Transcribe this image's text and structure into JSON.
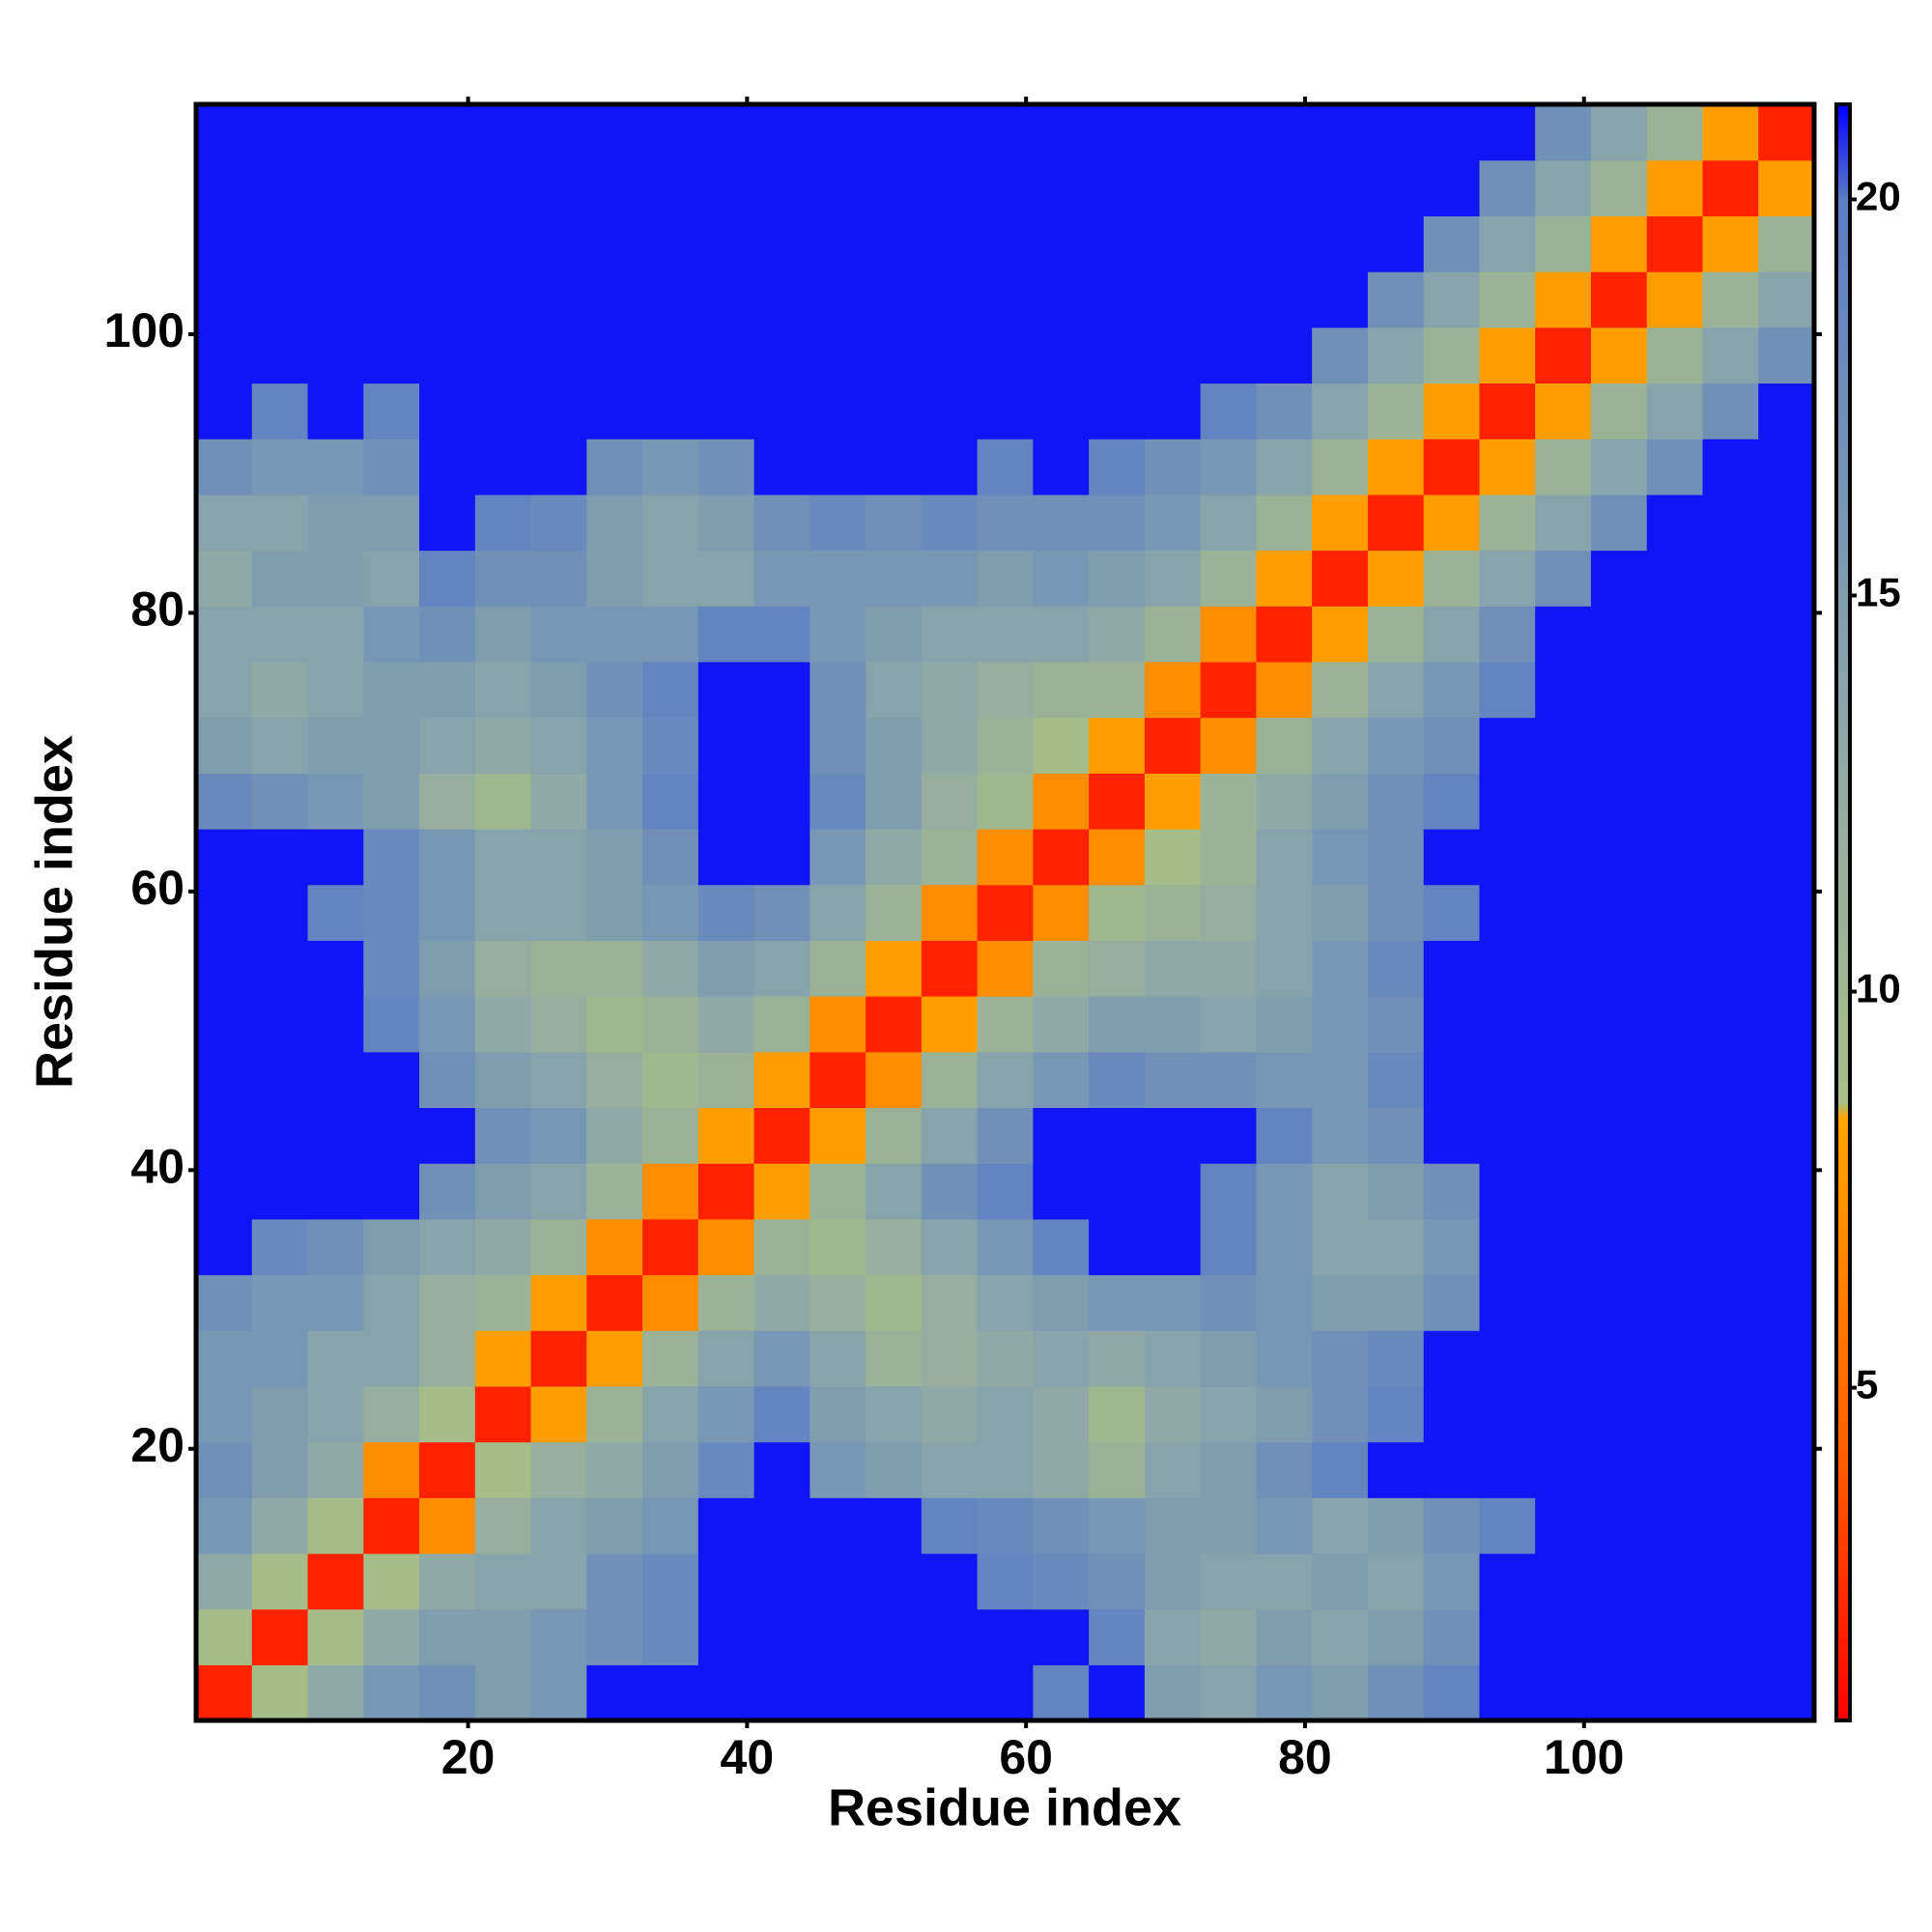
{
  "chart_data": {
    "type": "heatmap",
    "xlabel": "Residue index",
    "ylabel": "Residue index",
    "x": [
      2.5,
      6.5,
      10.5,
      14.5,
      18.5,
      22.5,
      26.5,
      30.5,
      34.5,
      38.5,
      42.5,
      46.5,
      50.5,
      54.5,
      58.5,
      62.5,
      66.5,
      70.5,
      74.5,
      78.5,
      82.5,
      86.5,
      90.5,
      94.5,
      98.5,
      102.5,
      106.5,
      110.5,
      114.5
    ],
    "y": [
      2.5,
      6.5,
      10.5,
      14.5,
      18.5,
      22.5,
      26.5,
      30.5,
      34.5,
      38.5,
      42.5,
      46.5,
      50.5,
      54.5,
      58.5,
      62.5,
      66.5,
      70.5,
      74.5,
      78.5,
      82.5,
      86.5,
      90.5,
      94.5,
      98.5,
      102.5,
      106.5,
      110.5,
      114.5
    ],
    "z": [
      [
        2,
        9,
        13,
        16,
        17,
        15,
        16,
        21,
        21,
        21,
        21,
        21,
        21,
        21,
        21,
        19,
        21,
        15,
        14,
        16,
        15,
        17,
        19,
        21,
        21,
        21,
        21,
        21,
        21
      ],
      [
        9,
        2,
        9,
        13,
        15,
        15,
        16,
        17,
        18,
        21,
        21,
        21,
        21,
        21,
        21,
        21,
        19,
        14,
        13,
        15,
        14,
        15,
        17,
        21,
        21,
        21,
        21,
        21,
        21
      ],
      [
        13,
        9,
        2,
        9,
        13,
        14,
        14,
        17,
        18,
        21,
        21,
        21,
        21,
        21,
        19,
        18,
        17,
        15,
        14,
        14,
        15,
        14,
        16,
        21,
        21,
        21,
        21,
        21,
        21
      ],
      [
        16,
        13,
        9,
        2,
        7,
        12,
        14,
        15,
        16,
        21,
        21,
        21,
        21,
        19,
        18,
        17,
        16,
        15,
        15,
        16,
        14,
        15,
        17,
        19,
        21,
        21,
        21,
        21,
        21
      ],
      [
        17,
        15,
        13,
        7,
        2,
        9,
        12,
        13,
        15,
        18,
        21,
        16,
        15,
        14,
        14,
        13,
        11,
        14,
        15,
        17,
        19,
        21,
        21,
        21,
        21,
        21,
        21,
        21,
        21
      ],
      [
        16,
        15,
        14,
        12,
        9,
        2,
        8,
        11,
        14,
        16,
        19,
        15,
        14,
        13,
        14,
        13,
        10,
        13,
        14,
        15,
        17,
        19,
        21,
        21,
        21,
        21,
        21,
        21,
        21
      ],
      [
        16,
        16,
        14,
        14,
        12,
        8,
        2,
        8,
        11,
        14,
        16,
        14,
        11,
        12,
        13,
        14,
        13,
        14,
        15,
        16,
        17,
        18,
        21,
        21,
        21,
        21,
        21,
        21,
        21
      ],
      [
        17,
        16,
        16,
        14,
        12,
        11,
        8,
        2,
        7,
        11,
        13,
        12,
        10,
        12,
        14,
        15,
        16,
        16,
        17,
        16,
        15,
        15,
        17,
        21,
        21,
        21,
        21,
        21,
        21
      ],
      [
        21,
        18,
        17,
        15,
        14,
        13,
        11,
        7,
        2,
        7,
        11,
        10,
        12,
        14,
        16,
        19,
        21,
        21,
        19,
        16,
        14,
        14,
        16,
        21,
        21,
        21,
        21,
        21,
        21
      ],
      [
        21,
        21,
        21,
        21,
        17,
        15,
        14,
        11,
        7,
        2,
        8,
        11,
        14,
        17,
        19,
        21,
        21,
        21,
        19,
        16,
        14,
        15,
        17,
        21,
        21,
        21,
        21,
        21,
        21
      ],
      [
        21,
        21,
        21,
        21,
        21,
        17,
        16,
        13,
        11,
        8,
        2,
        8,
        11,
        14,
        17,
        21,
        21,
        21,
        21,
        19,
        16,
        17,
        21,
        21,
        21,
        21,
        21,
        21,
        21
      ],
      [
        21,
        21,
        21,
        21,
        17,
        15,
        14,
        12,
        10,
        11,
        8,
        2,
        7,
        11,
        14,
        16,
        18,
        17,
        17,
        16,
        16,
        18,
        21,
        21,
        21,
        21,
        21,
        21,
        21
      ],
      [
        21,
        21,
        21,
        19,
        16,
        13,
        12,
        10,
        11,
        13,
        11,
        7,
        2,
        8,
        11,
        13,
        15,
        15,
        14,
        15,
        16,
        17,
        21,
        21,
        21,
        21,
        21,
        21,
        21
      ],
      [
        21,
        21,
        21,
        18,
        15,
        12,
        11,
        11,
        13,
        15,
        14,
        11,
        8,
        2,
        7,
        11,
        12,
        13,
        13,
        14,
        16,
        18,
        21,
        21,
        21,
        21,
        21,
        21,
        21
      ],
      [
        21,
        21,
        19,
        18,
        16,
        14,
        14,
        15,
        16,
        18,
        17,
        14,
        11,
        7,
        2,
        7,
        10,
        11,
        12,
        14,
        15,
        17,
        19,
        21,
        21,
        21,
        21,
        21,
        21
      ],
      [
        21,
        21,
        21,
        18,
        16,
        14,
        14,
        15,
        17,
        21,
        21,
        16,
        13,
        11,
        7,
        2,
        7,
        9,
        11,
        14,
        16,
        17,
        21,
        21,
        21,
        21,
        21,
        21,
        21
      ],
      [
        18,
        17,
        16,
        15,
        12,
        10,
        13,
        16,
        19,
        21,
        21,
        18,
        15,
        12,
        10,
        7,
        2,
        8,
        11,
        13,
        15,
        17,
        19,
        21,
        21,
        21,
        21,
        21,
        21
      ],
      [
        15,
        14,
        15,
        15,
        14,
        13,
        14,
        16,
        18,
        21,
        21,
        17,
        15,
        13,
        11,
        9,
        8,
        2,
        7,
        11,
        14,
        16,
        17,
        21,
        21,
        21,
        21,
        21,
        21
      ],
      [
        14,
        13,
        14,
        15,
        15,
        14,
        15,
        17,
        19,
        21,
        21,
        17,
        14,
        13,
        12,
        11,
        11,
        7,
        2,
        7,
        11,
        14,
        16,
        19,
        21,
        21,
        21,
        21,
        21
      ],
      [
        14,
        14,
        14,
        16,
        17,
        15,
        16,
        16,
        16,
        19,
        19,
        16,
        15,
        14,
        14,
        14,
        13,
        11,
        7,
        2,
        8,
        11,
        14,
        17,
        21,
        21,
        21,
        21,
        21
      ],
      [
        13,
        15,
        15,
        14,
        19,
        17,
        17,
        15,
        14,
        14,
        16,
        16,
        16,
        16,
        15,
        16,
        15,
        14,
        11,
        8,
        2,
        8,
        11,
        14,
        17,
        21,
        21,
        21,
        21
      ],
      [
        14,
        14,
        15,
        15,
        21,
        19,
        18,
        15,
        14,
        15,
        17,
        18,
        17,
        18,
        17,
        17,
        17,
        16,
        14,
        11,
        8,
        2,
        8,
        11,
        14,
        17,
        21,
        21,
        21
      ],
      [
        17,
        16,
        16,
        17,
        21,
        21,
        21,
        17,
        16,
        17,
        21,
        21,
        21,
        21,
        19,
        21,
        19,
        17,
        16,
        14,
        11,
        8,
        2,
        8,
        11,
        14,
        17,
        21,
        21
      ],
      [
        21,
        19,
        21,
        19,
        21,
        21,
        21,
        21,
        21,
        21,
        21,
        21,
        21,
        21,
        21,
        21,
        21,
        21,
        19,
        17,
        14,
        11,
        8,
        2,
        8,
        11,
        14,
        17,
        21
      ],
      [
        21,
        21,
        21,
        21,
        21,
        21,
        21,
        21,
        21,
        21,
        21,
        21,
        21,
        21,
        21,
        21,
        21,
        21,
        21,
        21,
        17,
        14,
        11,
        8,
        2,
        8,
        11,
        14,
        17
      ],
      [
        21,
        21,
        21,
        21,
        21,
        21,
        21,
        21,
        21,
        21,
        21,
        21,
        21,
        21,
        21,
        21,
        21,
        21,
        21,
        21,
        21,
        17,
        14,
        11,
        8,
        2,
        8,
        11,
        14
      ],
      [
        21,
        21,
        21,
        21,
        21,
        21,
        21,
        21,
        21,
        21,
        21,
        21,
        21,
        21,
        21,
        21,
        21,
        21,
        21,
        21,
        21,
        21,
        17,
        14,
        11,
        8,
        2,
        8,
        11
      ],
      [
        21,
        21,
        21,
        21,
        21,
        21,
        21,
        21,
        21,
        21,
        21,
        21,
        21,
        21,
        21,
        21,
        21,
        21,
        21,
        21,
        21,
        21,
        21,
        17,
        14,
        11,
        8,
        2,
        8
      ],
      [
        21,
        21,
        21,
        21,
        21,
        21,
        21,
        21,
        21,
        21,
        21,
        21,
        21,
        21,
        21,
        21,
        21,
        21,
        21,
        21,
        21,
        21,
        21,
        21,
        17,
        14,
        11,
        8,
        2
      ]
    ],
    "xlim": [
      0.5,
      116.5
    ],
    "ylim": [
      0.5,
      116.5
    ],
    "xticks": [
      20,
      40,
      60,
      80,
      100
    ],
    "yticks": [
      20,
      40,
      60,
      80,
      100
    ],
    "zlim": [
      0.8,
      21.2
    ],
    "zticks": [
      5,
      10,
      15,
      20
    ],
    "colorscale": [
      [
        0.8,
        "#ff0000"
      ],
      [
        4,
        "#ff5a00"
      ],
      [
        8.4,
        "#ffa500"
      ],
      [
        8.6,
        "#a8bf86"
      ],
      [
        13,
        "#8fa9a6"
      ],
      [
        20,
        "#5a7ec6"
      ],
      [
        21.2,
        "#0000ff"
      ]
    ]
  }
}
